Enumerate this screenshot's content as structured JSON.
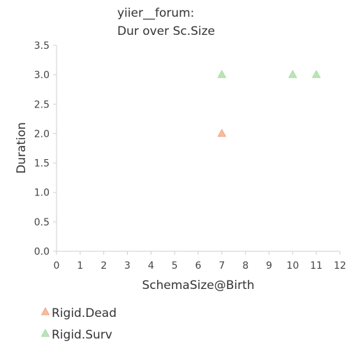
{
  "chart_data": {
    "type": "scatter",
    "title": "yiier__forum:",
    "subtitle": "Dur over Sc.Size",
    "xlabel": "SchemaSize@Birth",
    "ylabel": "Duration",
    "xlim": [
      0,
      12
    ],
    "ylim": [
      0,
      3.5
    ],
    "xticks": [
      "0",
      "1",
      "2",
      "3",
      "4",
      "5",
      "6",
      "7",
      "8",
      "9",
      "10",
      "11",
      "12"
    ],
    "yticks": [
      "0.0",
      "0.5",
      "1.0",
      "1.5",
      "2.0",
      "2.5",
      "3.0",
      "3.5"
    ],
    "grid": false,
    "legend_position": "bottom-left",
    "marker": "triangle",
    "series": [
      {
        "name": "Rigid.Dead",
        "color": "#f4a582",
        "points": [
          {
            "x": 7,
            "y": 2.0
          }
        ]
      },
      {
        "name": "Rigid.Surv",
        "color": "#a6dba0",
        "points": [
          {
            "x": 7,
            "y": 3.0
          },
          {
            "x": 10,
            "y": 3.0
          },
          {
            "x": 11,
            "y": 3.0
          }
        ]
      }
    ]
  }
}
